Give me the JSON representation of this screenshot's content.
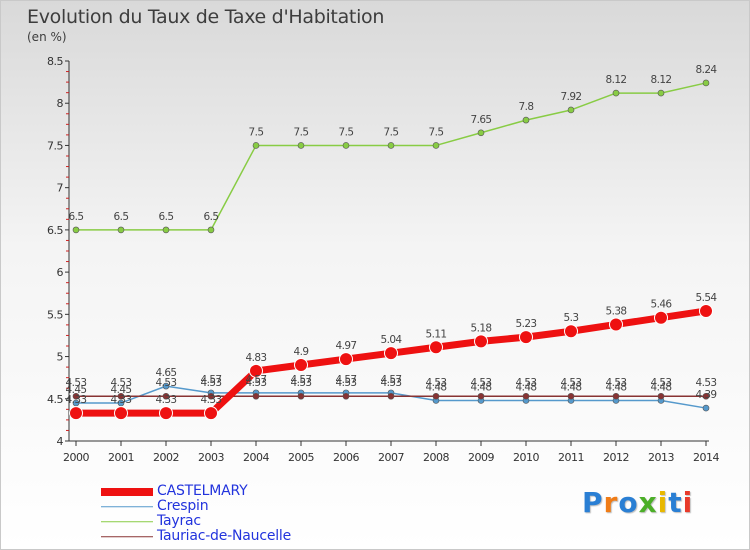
{
  "title": "Evolution du Taux de Taxe d'Habitation",
  "subtitle": "(en %)",
  "logo": {
    "text": "Proxiti",
    "letter_colors": [
      "#2a7fd4",
      "#f07c16",
      "#2a7fd4",
      "#4caf28",
      "#e8b800",
      "#2a7fd4",
      "#e83a2a"
    ]
  },
  "chart_data": {
    "type": "line",
    "title": "Evolution du Taux de Taxe d'Habitation",
    "ylabel": "(en %)",
    "xlabel": "",
    "ylim": [
      4,
      8.5
    ],
    "yticks": [
      "4",
      "4.5",
      "5",
      "5.5",
      "6",
      "6.5",
      "7",
      "7.5",
      "8",
      "8.5"
    ],
    "x": [
      "2000",
      "2001",
      "2002",
      "2003",
      "2004",
      "2005",
      "2006",
      "2007",
      "2008",
      "2009",
      "2010",
      "2011",
      "2012",
      "2013",
      "2014"
    ],
    "grid": false,
    "legend_position": "bottom-left",
    "series": [
      {
        "name": "CASTELMARY",
        "color": "#ee1111",
        "values": [
          4.33,
          4.33,
          4.33,
          4.33,
          4.83,
          4.9,
          4.97,
          5.04,
          5.11,
          5.18,
          5.23,
          5.3,
          5.38,
          5.46,
          5.54
        ],
        "labels": [
          "4.33",
          "4.33",
          "4.33",
          "4.33",
          "4.83",
          "4.9",
          "4.97",
          "5.04",
          "5.11",
          "5.18",
          "5.23",
          "5.3",
          "5.38",
          "5.46",
          "5.54"
        ]
      },
      {
        "name": "Crespin",
        "color": "#5599cc",
        "values": [
          4.45,
          4.45,
          4.65,
          4.57,
          4.57,
          4.57,
          4.57,
          4.57,
          4.48,
          4.48,
          4.48,
          4.48,
          4.48,
          4.48,
          4.39
        ],
        "labels": [
          "4.45",
          "4.45",
          "4.65",
          "4.57",
          "4.57",
          "4.57",
          "4.57",
          "4.57",
          "4.48",
          "4.48",
          "4.48",
          "4.48",
          "4.48",
          "4.48",
          "4.39"
        ]
      },
      {
        "name": "Tayrac",
        "color": "#88cc44",
        "values": [
          6.5,
          6.5,
          6.5,
          6.5,
          7.5,
          7.5,
          7.5,
          7.5,
          7.5,
          7.65,
          7.8,
          7.92,
          8.12,
          8.12,
          8.24
        ],
        "labels": [
          "6.5",
          "6.5",
          "6.5",
          "6.5",
          "7.5",
          "7.5",
          "7.5",
          "7.5",
          "7.5",
          "7.65",
          "7.8",
          "7.92",
          "8.12",
          "8.12",
          "8.24"
        ]
      },
      {
        "name": "Tauriac-de-Naucelle",
        "color": "#883333",
        "values": [
          4.53,
          4.53,
          4.53,
          4.53,
          4.53,
          4.53,
          4.53,
          4.53,
          4.53,
          4.53,
          4.53,
          4.53,
          4.53,
          4.53,
          4.53
        ],
        "labels": [
          "4.53",
          "4.53",
          "4.53",
          "4.53",
          "4.53",
          "4.53",
          "4.53",
          "4.53",
          "4.53",
          "4.53",
          "4.53",
          "4.53",
          "4.53",
          "4.53",
          "4.53"
        ]
      }
    ]
  },
  "legend": [
    {
      "label": "CASTELMARY",
      "color": "#ee1111",
      "text_color": "#2233dd"
    },
    {
      "label": "Crespin",
      "color": "#5599cc",
      "text_color": "#2233dd"
    },
    {
      "label": "Tayrac",
      "color": "#88cc44",
      "text_color": "#2233dd"
    },
    {
      "label": "Tauriac-de-Naucelle",
      "color": "#883333",
      "text_color": "#2233dd"
    }
  ]
}
